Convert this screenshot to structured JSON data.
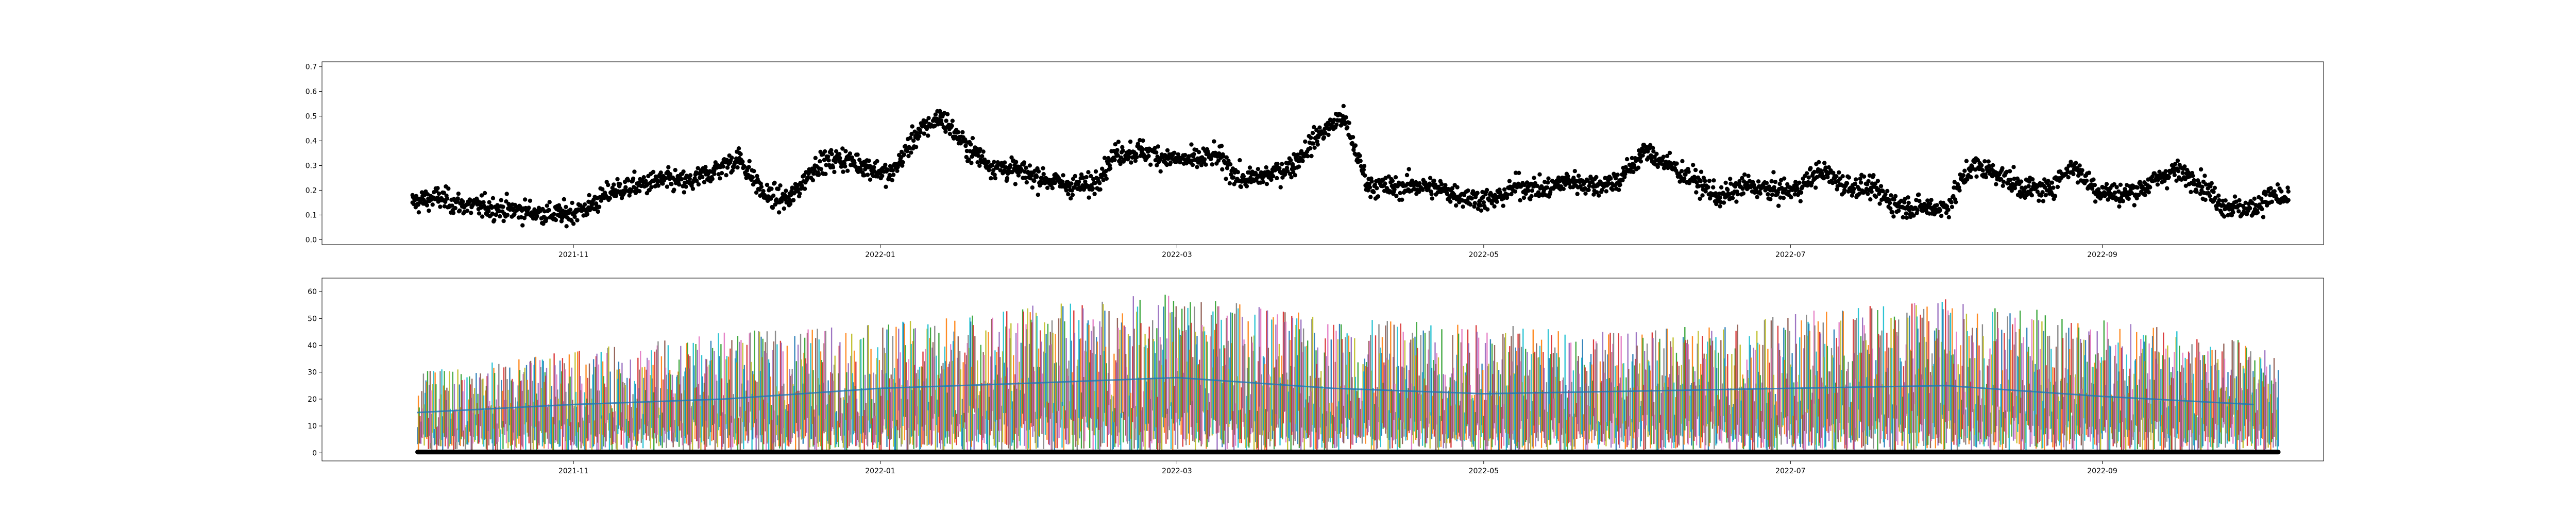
{
  "chart_data": [
    {
      "type": "scatter",
      "title": "",
      "xlabel": "",
      "ylabel": "",
      "x_type": "date",
      "xlim": [
        "2021-09-12",
        "2022-10-15"
      ],
      "ylim": [
        -0.02,
        0.72
      ],
      "grid": false,
      "legend": "none",
      "x_ticks": [
        {
          "date": "2021-11-01",
          "label": "2021-11"
        },
        {
          "date": "2022-01-01",
          "label": "2022-01"
        },
        {
          "date": "2022-03-01",
          "label": "2022-03"
        },
        {
          "date": "2022-05-01",
          "label": "2022-05"
        },
        {
          "date": "2022-07-01",
          "label": "2022-07"
        },
        {
          "date": "2022-09-01",
          "label": "2022-09"
        }
      ],
      "y_ticks": [
        "0.0",
        "0.1",
        "0.2",
        "0.3",
        "0.4",
        "0.5",
        "0.6",
        "0.7"
      ],
      "series": [
        {
          "color": "#000000",
          "marker": "circle",
          "points": [
            [
              "2021-09-30",
              0.15
            ],
            [
              "2021-10-05",
              0.17
            ],
            [
              "2021-10-10",
              0.14
            ],
            [
              "2021-10-15",
              0.13
            ],
            [
              "2021-10-20",
              0.12
            ],
            [
              "2021-10-25",
              0.11
            ],
            [
              "2021-10-30",
              0.1
            ],
            [
              "2021-11-04",
              0.13
            ],
            [
              "2021-11-09",
              0.2
            ],
            [
              "2021-11-14",
              0.22
            ],
            [
              "2021-11-19",
              0.24
            ],
            [
              "2021-11-24",
              0.23
            ],
            [
              "2021-11-29",
              0.28
            ],
            [
              "2021-12-04",
              0.33
            ],
            [
              "2021-12-09",
              0.18
            ],
            [
              "2021-12-14",
              0.16
            ],
            [
              "2021-12-19",
              0.3
            ],
            [
              "2021-12-24",
              0.33
            ],
            [
              "2021-12-29",
              0.3
            ],
            [
              "2022-01-03",
              0.26
            ],
            [
              "2022-01-08",
              0.42
            ],
            [
              "2022-01-13",
              0.5
            ],
            [
              "2022-01-18",
              0.38
            ],
            [
              "2022-01-23",
              0.3
            ],
            [
              "2022-01-28",
              0.28
            ],
            [
              "2022-02-02",
              0.25
            ],
            [
              "2022-02-07",
              0.22
            ],
            [
              "2022-02-12",
              0.22
            ],
            [
              "2022-02-17",
              0.35
            ],
            [
              "2022-02-22",
              0.36
            ],
            [
              "2022-02-27",
              0.33
            ],
            [
              "2022-03-04",
              0.32
            ],
            [
              "2022-03-09",
              0.34
            ],
            [
              "2022-03-14",
              0.24
            ],
            [
              "2022-03-19",
              0.26
            ],
            [
              "2022-03-24",
              0.3
            ],
            [
              "2022-03-29",
              0.42
            ],
            [
              "2022-04-03",
              0.5
            ],
            [
              "2022-04-08",
              0.22
            ],
            [
              "2022-04-13",
              0.21
            ],
            [
              "2022-04-18",
              0.22
            ],
            [
              "2022-04-23",
              0.2
            ],
            [
              "2022-04-28",
              0.17
            ],
            [
              "2022-05-03",
              0.16
            ],
            [
              "2022-05-08",
              0.22
            ],
            [
              "2022-05-13",
              0.2
            ],
            [
              "2022-05-18",
              0.24
            ],
            [
              "2022-05-23",
              0.22
            ],
            [
              "2022-05-28",
              0.24
            ],
            [
              "2022-06-02",
              0.36
            ],
            [
              "2022-06-07",
              0.3
            ],
            [
              "2022-06-12",
              0.24
            ],
            [
              "2022-06-17",
              0.17
            ],
            [
              "2022-06-22",
              0.22
            ],
            [
              "2022-06-27",
              0.2
            ],
            [
              "2022-07-02",
              0.2
            ],
            [
              "2022-07-07",
              0.28
            ],
            [
              "2022-07-12",
              0.22
            ],
            [
              "2022-07-17",
              0.21
            ],
            [
              "2022-07-22",
              0.14
            ],
            [
              "2022-07-27",
              0.13
            ],
            [
              "2022-08-01",
              0.13
            ],
            [
              "2022-08-06",
              0.3
            ],
            [
              "2022-08-11",
              0.27
            ],
            [
              "2022-08-16",
              0.21
            ],
            [
              "2022-08-21",
              0.2
            ],
            [
              "2022-08-26",
              0.3
            ],
            [
              "2022-08-31",
              0.2
            ],
            [
              "2022-09-05",
              0.18
            ],
            [
              "2022-09-10",
              0.22
            ],
            [
              "2022-09-15",
              0.28
            ],
            [
              "2022-09-20",
              0.24
            ],
            [
              "2022-09-25",
              0.14
            ],
            [
              "2022-09-30",
              0.12
            ],
            [
              "2022-10-05",
              0.18
            ],
            [
              "2022-10-08",
              0.16
            ]
          ]
        }
      ]
    },
    {
      "type": "line",
      "title": "",
      "xlabel": "",
      "ylabel": "",
      "x_type": "date",
      "xlim": [
        "2021-09-12",
        "2022-10-15"
      ],
      "ylim": [
        -3,
        65
      ],
      "grid": false,
      "legend": "none",
      "x_ticks": [
        {
          "date": "2021-11-01",
          "label": "2021-11"
        },
        {
          "date": "2022-01-01",
          "label": "2022-01"
        },
        {
          "date": "2022-03-01",
          "label": "2022-03"
        },
        {
          "date": "2022-05-01",
          "label": "2022-05"
        },
        {
          "date": "2022-07-01",
          "label": "2022-07"
        },
        {
          "date": "2022-09-01",
          "label": "2022-09"
        }
      ],
      "y_ticks": [
        "0",
        "10",
        "20",
        "30",
        "40",
        "50",
        "60"
      ],
      "colors": [
        "#1f77b4",
        "#ff7f0e",
        "#2ca02c",
        "#d62728",
        "#9467bd",
        "#8c564b",
        "#e377c2",
        "#7f7f7f",
        "#bcbd22",
        "#17becf"
      ],
      "series": [
        {
          "color": "#1f77b4",
          "x": [
            "2021-10-01",
            "2021-11-01",
            "2021-12-01",
            "2022-01-01",
            "2022-02-01",
            "2022-03-01",
            "2022-04-01",
            "2022-05-01",
            "2022-06-01",
            "2022-07-01",
            "2022-08-01",
            "2022-09-01",
            "2022-10-01"
          ],
          "y": [
            15,
            18,
            20,
            24,
            26,
            28,
            24,
            22,
            23,
            24,
            25,
            21,
            18
          ]
        },
        {
          "name": "",
          "color": "#000000",
          "style": "thick baseline",
          "x": [
            "2021-10-01",
            "2022-10-06"
          ],
          "y": [
            0.3,
            0.3
          ]
        }
      ],
      "spike_envelope": {
        "x": [
          "2021-10-01",
          "2021-11-01",
          "2021-12-01",
          "2022-01-01",
          "2022-02-01",
          "2022-03-01",
          "2022-04-01",
          "2022-05-01",
          "2022-06-01",
          "2022-07-01",
          "2022-08-01",
          "2022-09-01",
          "2022-10-06"
        ],
        "max": [
          30,
          38,
          45,
          48,
          55,
          60,
          50,
          48,
          45,
          52,
          58,
          50,
          40
        ]
      }
    }
  ]
}
